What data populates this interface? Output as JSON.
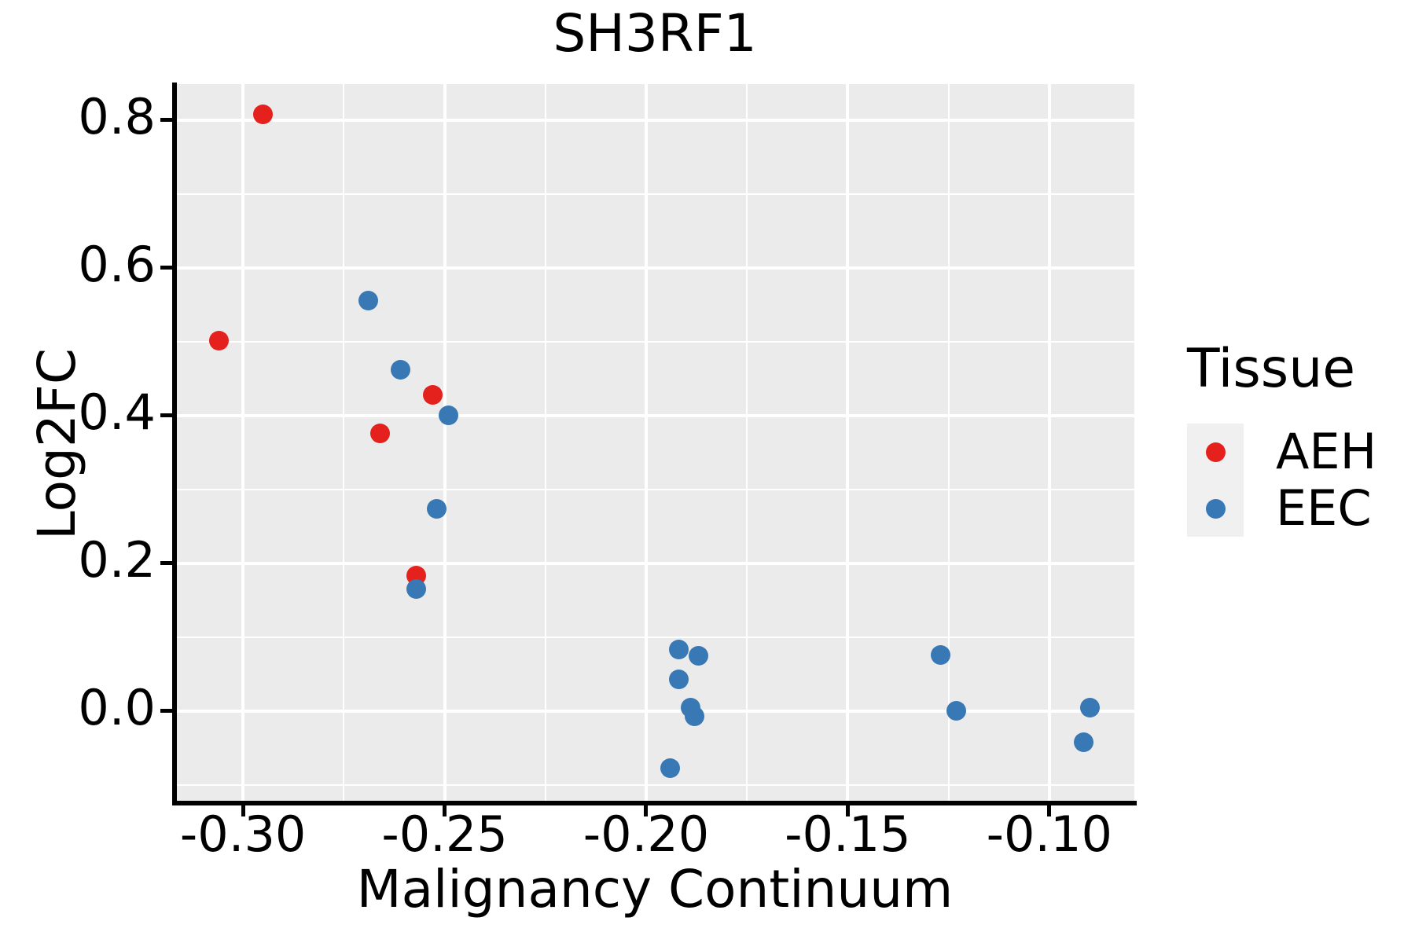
{
  "title": "SH3RF1",
  "axes": {
    "x": {
      "label": "Malignancy Continuum",
      "tick_values": [
        -0.3,
        -0.25,
        -0.2,
        -0.15,
        -0.1
      ],
      "tick_labels": [
        "-0.30",
        "-0.25",
        "-0.20",
        "-0.15",
        "-0.10"
      ],
      "minor_gridlines": [
        -0.275,
        -0.225,
        -0.175,
        -0.125
      ]
    },
    "y": {
      "label": "Log2FC",
      "tick_values": [
        0.0,
        0.2,
        0.4,
        0.6,
        0.8
      ],
      "tick_labels": [
        "0.0",
        "0.2",
        "0.4",
        "0.6",
        "0.8"
      ],
      "minor_gridlines": [
        -0.1,
        0.1,
        0.3,
        0.5,
        0.7
      ]
    }
  },
  "legend": {
    "title": "Tissue",
    "items": [
      {
        "label": "AEH",
        "color": "#E4211C"
      },
      {
        "label": "EEC",
        "color": "#3878B4"
      }
    ]
  },
  "colors": {
    "panel_background": "#EBEBEB",
    "gridline": "#FFFFFF",
    "axis": "#000000",
    "legend_key_background": "#F0F0F0",
    "aeh_red": "#E4211C",
    "eec_blue": "#3878B4"
  },
  "chart_data": {
    "type": "scatter",
    "title": "SH3RF1",
    "xlabel": "Malignancy Continuum",
    "ylabel": "Log2FC",
    "xlim": [
      -0.3168,
      -0.0789
    ],
    "ylim": [
      -0.1245,
      0.8489
    ],
    "grid": true,
    "legend_title": "Tissue",
    "legend_position": "right",
    "series": [
      {
        "name": "AEH",
        "color": "#E4211C",
        "points": [
          [
            -0.295,
            0.808
          ],
          [
            -0.306,
            0.502
          ],
          [
            -0.266,
            0.376
          ],
          [
            -0.253,
            0.428
          ],
          [
            -0.257,
            0.184
          ]
        ]
      },
      {
        "name": "EEC",
        "color": "#3878B4",
        "points": [
          [
            -0.269,
            0.556
          ],
          [
            -0.261,
            0.462
          ],
          [
            -0.249,
            0.4
          ],
          [
            -0.252,
            0.274
          ],
          [
            -0.257,
            0.165
          ],
          [
            -0.192,
            0.084
          ],
          [
            -0.187,
            0.075
          ],
          [
            -0.192,
            0.043
          ],
          [
            -0.189,
            0.005
          ],
          [
            -0.188,
            -0.007
          ],
          [
            -0.194,
            -0.077
          ],
          [
            -0.127,
            0.076
          ],
          [
            -0.123,
            0.0
          ],
          [
            -0.09,
            0.005
          ],
          [
            -0.0915,
            -0.042
          ]
        ]
      }
    ]
  }
}
